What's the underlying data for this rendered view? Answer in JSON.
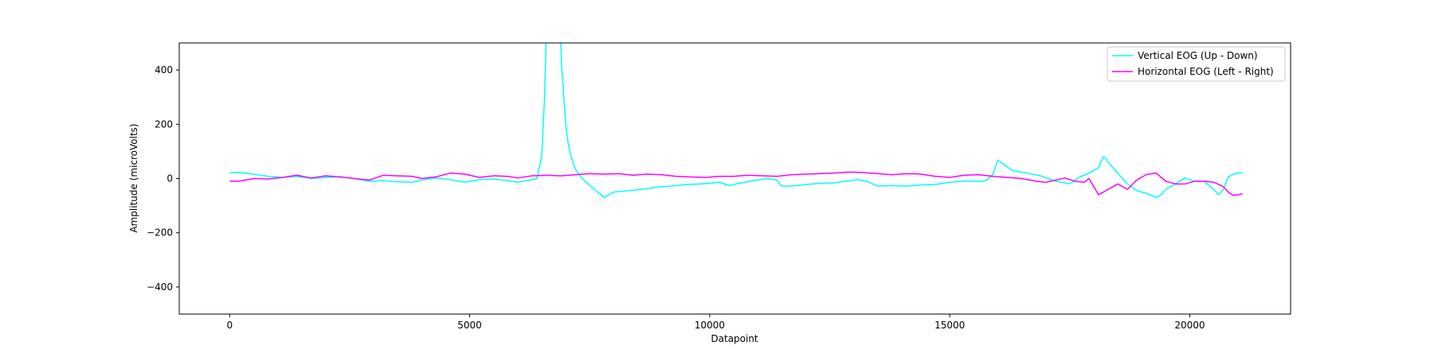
{
  "chart_data": {
    "type": "line",
    "title": "",
    "xlabel": "Datapoint",
    "ylabel": "Amplitude (microVolts)",
    "xlim": [
      -1050,
      22100
    ],
    "ylim": [
      -500,
      500
    ],
    "xticks": [
      0,
      5000,
      10000,
      15000,
      20000
    ],
    "xtick_labels": [
      "0",
      "5000",
      "10000",
      "15000",
      "20000"
    ],
    "yticks": [
      -400,
      -200,
      0,
      200,
      400
    ],
    "ytick_labels": [
      "−400",
      "−200",
      "0",
      "200",
      "400"
    ],
    "grid": false,
    "legend_position": "top-right",
    "series": [
      {
        "name": "Vertical EOG (Up - Down)",
        "color": "#00ffff",
        "x": [
          0,
          200,
          500,
          800,
          1100,
          1400,
          1700,
          2000,
          2300,
          2600,
          2900,
          3200,
          3500,
          3800,
          4000,
          4300,
          4600,
          4900,
          5200,
          5500,
          5800,
          6000,
          6200,
          6400,
          6500,
          6560,
          6600,
          6640,
          6680,
          6720,
          6760,
          6820,
          6880,
          6920,
          6960,
          7000,
          7050,
          7100,
          7150,
          7200,
          7300,
          7400,
          7500,
          7600,
          7700,
          7800,
          7900,
          8000,
          8300,
          8600,
          8900,
          9200,
          9500,
          9800,
          10000,
          10200,
          10400,
          10600,
          10900,
          11200,
          11400,
          11500,
          11700,
          12000,
          12300,
          12600,
          12900,
          13100,
          13300,
          13500,
          13800,
          14100,
          14400,
          14700,
          15000,
          15300,
          15500,
          15700,
          15800,
          15900,
          16000,
          16100,
          16300,
          16600,
          16900,
          17200,
          17500,
          17700,
          17900,
          18100,
          18200,
          18250,
          18300,
          18400,
          18500,
          18700,
          18900,
          19100,
          19300,
          19400,
          19500,
          19700,
          19900,
          20100,
          20300,
          20500,
          20600,
          20700,
          20800,
          20900,
          21000,
          21100
        ],
        "y": [
          22,
          22,
          16,
          8,
          4,
          8,
          0,
          4,
          6,
          0,
          -10,
          -8,
          -12,
          -14,
          -6,
          2,
          -4,
          -14,
          -4,
          -2,
          -8,
          -14,
          -8,
          0,
          80,
          300,
          560,
          600,
          600,
          600,
          600,
          600,
          560,
          400,
          300,
          200,
          130,
          90,
          60,
          35,
          10,
          -10,
          -25,
          -40,
          -55,
          -70,
          -60,
          -50,
          -45,
          -40,
          -32,
          -28,
          -22,
          -20,
          -18,
          -14,
          -26,
          -18,
          -8,
          0,
          -6,
          -28,
          -28,
          -22,
          -18,
          -16,
          -8,
          -4,
          -12,
          -28,
          -26,
          -28,
          -24,
          -22,
          -14,
          -10,
          -10,
          -10,
          -2,
          15,
          68,
          55,
          30,
          20,
          10,
          -10,
          -20,
          5,
          20,
          40,
          80,
          75,
          60,
          40,
          20,
          -20,
          -45,
          -55,
          -70,
          -60,
          -40,
          -20,
          2,
          -10,
          -10,
          -40,
          -60,
          -40,
          5,
          15,
          20,
          20
        ]
      },
      {
        "name": "Horizontal EOG (Left - Right)",
        "color": "#ff00ff",
        "x": [
          0,
          200,
          500,
          800,
          1100,
          1400,
          1700,
          2000,
          2300,
          2600,
          2900,
          3200,
          3500,
          3800,
          4000,
          4300,
          4600,
          4900,
          5200,
          5500,
          5800,
          6000,
          6300,
          6600,
          6900,
          7200,
          7500,
          7800,
          8100,
          8400,
          8700,
          9000,
          9300,
          9600,
          9900,
          10200,
          10500,
          10800,
          11100,
          11400,
          11700,
          12000,
          12300,
          12600,
          12900,
          13200,
          13500,
          13800,
          14100,
          14400,
          14700,
          15000,
          15300,
          15600,
          15900,
          16200,
          16500,
          16800,
          17000,
          17200,
          17400,
          17600,
          17800,
          17900,
          18000,
          18100,
          18300,
          18500,
          18700,
          18900,
          19100,
          19300,
          19500,
          19700,
          19900,
          20100,
          20300,
          20500,
          20700,
          20800,
          20900,
          21000,
          21100
        ],
        "y": [
          -10,
          -10,
          0,
          -2,
          4,
          12,
          2,
          10,
          6,
          0,
          -6,
          12,
          10,
          8,
          0,
          6,
          20,
          16,
          4,
          10,
          8,
          2,
          10,
          12,
          10,
          14,
          18,
          16,
          18,
          12,
          16,
          14,
          8,
          6,
          4,
          8,
          8,
          12,
          10,
          8,
          14,
          16,
          18,
          20,
          24,
          22,
          18,
          14,
          18,
          16,
          8,
          4,
          12,
          14,
          8,
          4,
          0,
          -10,
          -14,
          -6,
          2,
          -10,
          -14,
          0,
          -30,
          -60,
          -40,
          -20,
          -40,
          -5,
          15,
          20,
          -10,
          -20,
          -20,
          -10,
          -10,
          -14,
          -30,
          -50,
          -62,
          -60,
          -56
        ]
      }
    ]
  }
}
